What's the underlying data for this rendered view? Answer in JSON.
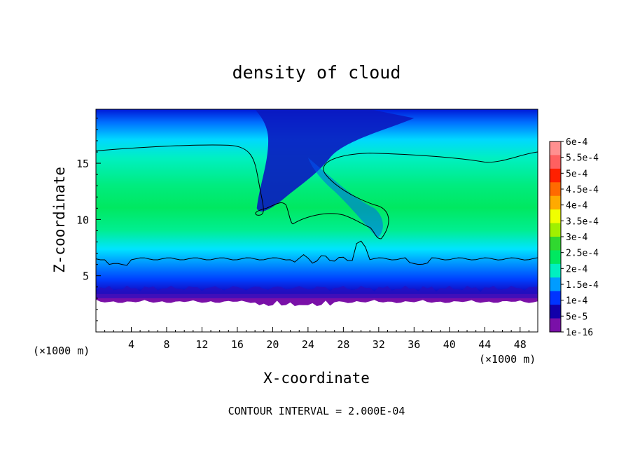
{
  "chart_data": {
    "type": "heatmap",
    "title": "density of cloud",
    "xlabel": "X-coordinate",
    "ylabel": "Z-coordinate",
    "x_unit": "(×1000 m)",
    "y_unit": "(×1000 m)",
    "footnote": "CONTOUR INTERVAL = 2.000E-04",
    "xlim": [
      0,
      50
    ],
    "ylim": [
      0,
      19.8
    ],
    "x_ticks": [
      "4",
      "8",
      "12",
      "16",
      "20",
      "24",
      "28",
      "32",
      "36",
      "40",
      "44",
      "48"
    ],
    "x_tick_values": [
      4,
      8,
      12,
      16,
      20,
      24,
      28,
      32,
      36,
      40,
      44,
      48
    ],
    "y_ticks": [
      "5",
      "10",
      "15"
    ],
    "y_tick_values": [
      5,
      10,
      15
    ],
    "field": {
      "cloud_base": 3.0,
      "cloud_top": 19.8,
      "core_value": 0.00027,
      "contour_level": 0.0002,
      "contour_bottom_z": 6.5,
      "contour_top_z": 16.0
    },
    "colorbar": {
      "labels": [
        "6e-4",
        "5.5e-4",
        "5e-4",
        "4.5e-4",
        "4e-4",
        "3.5e-4",
        "3e-4",
        "2.5e-4",
        "2e-4",
        "1.5e-4",
        "1e-4",
        "5e-5",
        "1e-16"
      ],
      "values": [
        0.0006,
        0.00055,
        0.0005,
        0.00045,
        0.0004,
        0.00035,
        0.0003,
        0.00025,
        0.0002,
        0.00015,
        0.0001,
        5e-05,
        1e-16
      ],
      "colors": [
        "#ff9090",
        "#ff6060",
        "#ff2000",
        "#ff6a00",
        "#ffaa00",
        "#f0ff00",
        "#a0f000",
        "#30d830",
        "#00e860",
        "#00f0c0",
        "#009cff",
        "#0034ff",
        "#1200aa",
        "#7a10a8"
      ]
    }
  }
}
